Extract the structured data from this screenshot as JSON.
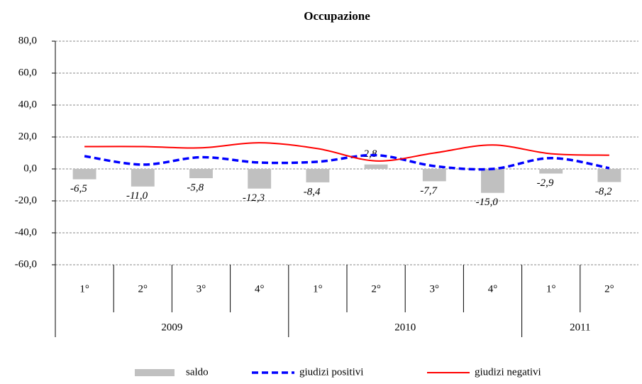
{
  "chart_data": {
    "type": "bar-line",
    "title": "Occupazione",
    "categories": [
      "1°",
      "2°",
      "3°",
      "4°",
      "1°",
      "2°",
      "3°",
      "4°",
      "1°",
      "2°"
    ],
    "groups": [
      {
        "label": "2009",
        "count": 4
      },
      {
        "label": "2010",
        "count": 4
      },
      {
        "label": "2011",
        "count": 2
      }
    ],
    "series": [
      {
        "name": "saldo",
        "type": "bar",
        "color": "#c0c0c0",
        "values": [
          -6.5,
          -11.0,
          -5.8,
          -12.3,
          -8.4,
          2.8,
          -7.7,
          -15.0,
          -2.9,
          -8.2
        ],
        "value_labels": [
          "-6,5",
          "-11,0",
          "-5,8",
          "-12,3",
          "-8,4",
          "2,8",
          "-7,7",
          "-15,0",
          "-2,9",
          "-8,2"
        ]
      },
      {
        "name": "giudizi positivi",
        "type": "line",
        "color": "#0000ff",
        "dashed": true,
        "values": [
          8.0,
          2.7,
          7.3,
          4.0,
          4.5,
          8.6,
          1.8,
          0.0,
          6.8,
          0.5
        ]
      },
      {
        "name": "giudizi negativi",
        "type": "line",
        "color": "#ff0000",
        "dashed": false,
        "values": [
          14.0,
          14.0,
          13.2,
          16.4,
          12.7,
          5.0,
          10.0,
          15.0,
          9.5,
          8.6
        ]
      }
    ],
    "ylim": [
      -60,
      80
    ],
    "yticks": [
      {
        "value": -60,
        "label": "-60,0"
      },
      {
        "value": -40,
        "label": "-40,0"
      },
      {
        "value": -20,
        "label": "-20,0"
      },
      {
        "value": 0,
        "label": "0,0"
      },
      {
        "value": 20,
        "label": "20,0"
      },
      {
        "value": 40,
        "label": "40,0"
      },
      {
        "value": 60,
        "label": "60,0"
      },
      {
        "value": 80,
        "label": "80,0"
      }
    ],
    "grid": true
  }
}
